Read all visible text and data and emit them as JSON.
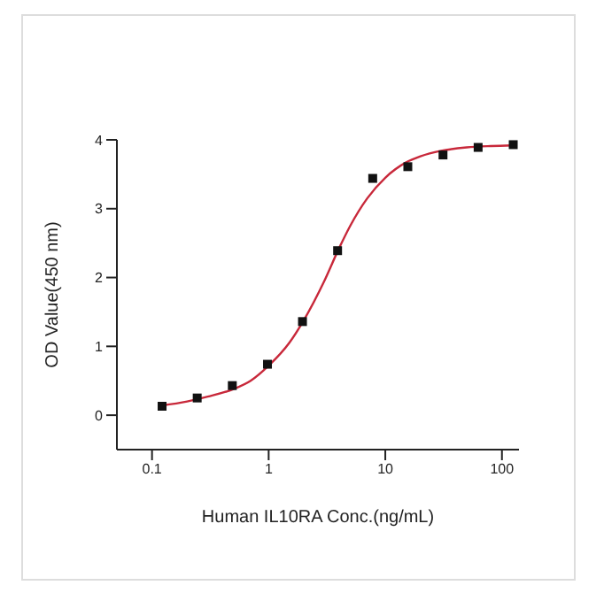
{
  "chart_data": {
    "type": "scatter",
    "xlabel": "Human IL10RA Conc.(ng/mL)",
    "ylabel": "OD Value(450 nm)",
    "log": "x",
    "xlim": [
      0.05,
      140
    ],
    "xticks": [
      0.1,
      1,
      10,
      100
    ],
    "ylim": [
      -0.5,
      4
    ],
    "yticks": [
      0,
      1,
      2,
      3,
      4
    ],
    "series": [
      {
        "marker": "square",
        "color": "#111111",
        "x": [
          0.122,
          0.244,
          0.488,
          0.977,
          1.95,
          3.9,
          7.8,
          15.6,
          31.25,
          62.5,
          125
        ],
        "values": [
          0.13,
          0.25,
          0.43,
          0.74,
          1.36,
          2.39,
          3.44,
          3.61,
          3.78,
          3.89,
          3.93
        ]
      },
      {
        "type": "line",
        "marker": "none",
        "line_style": "solid",
        "color": "#c8283a",
        "x": [
          0.12,
          0.2,
          0.3,
          0.5,
          0.7,
          1,
          1.5,
          2,
          3,
          4,
          5,
          7,
          10,
          15,
          20,
          30,
          50,
          80,
          125
        ],
        "values": [
          0.14,
          0.2,
          0.27,
          0.38,
          0.5,
          0.72,
          1.05,
          1.38,
          1.95,
          2.42,
          2.75,
          3.15,
          3.45,
          3.67,
          3.76,
          3.84,
          3.89,
          3.91,
          3.92
        ]
      }
    ]
  }
}
